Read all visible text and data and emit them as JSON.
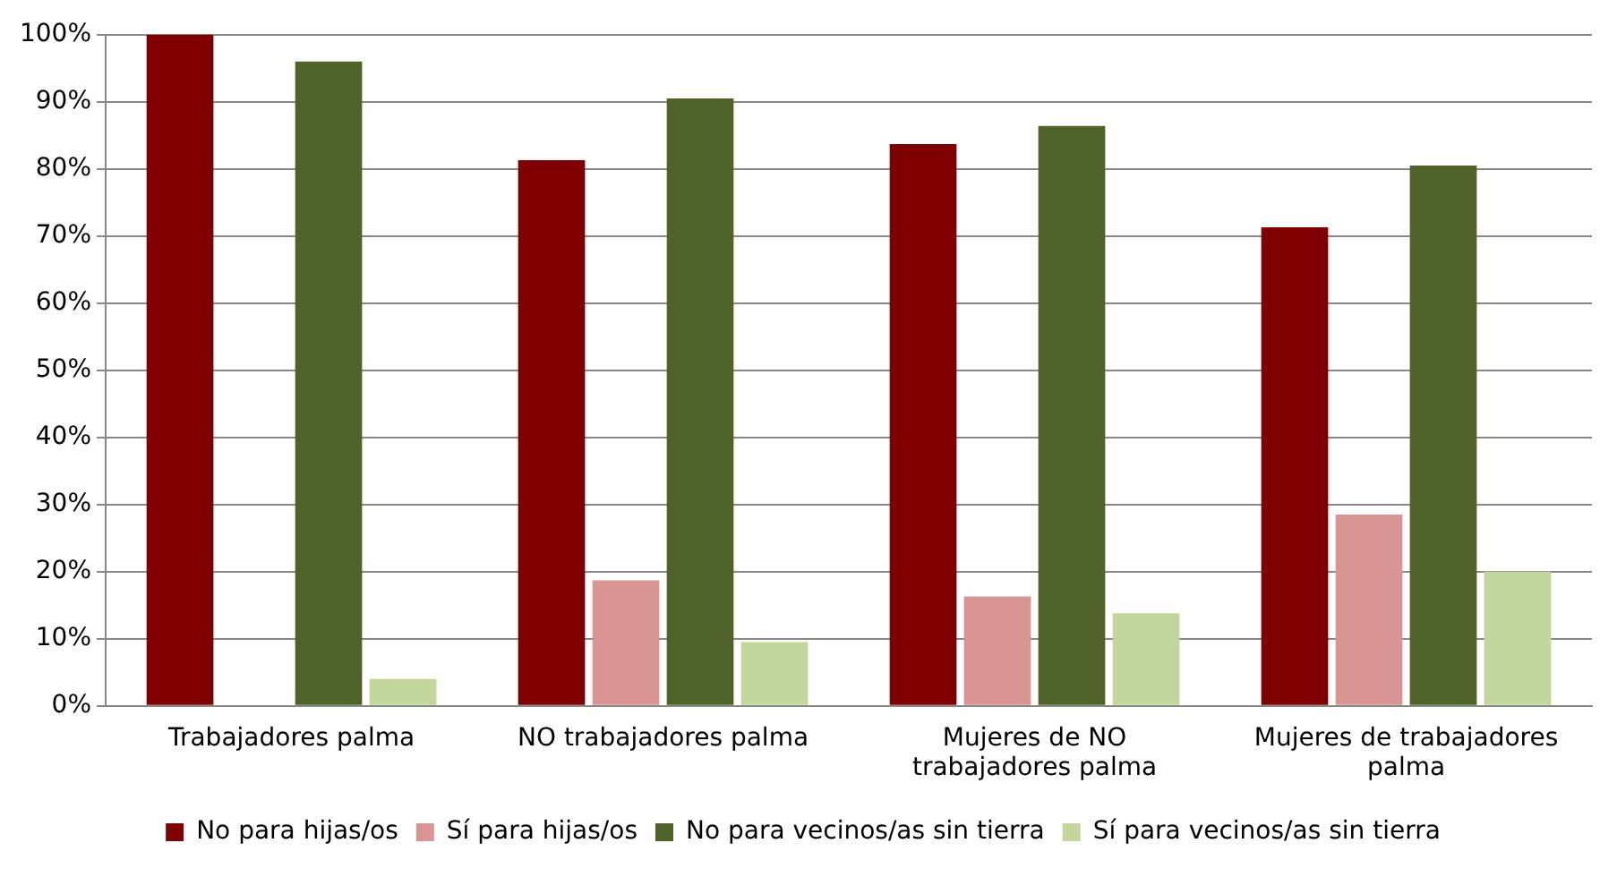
{
  "chart_data": {
    "type": "bar",
    "categories": [
      "Trabajadores palma",
      "NO trabajadores palma",
      "Mujeres de NO trabajadores palma",
      "Mujeres de trabajadores palma"
    ],
    "series": [
      {
        "name": "No para hijas/os",
        "color": "#7f0000",
        "values": [
          100,
          81.3,
          83.7,
          71.3
        ]
      },
      {
        "name": "Sí para hijas/os",
        "color": "#d99594",
        "values": [
          0,
          18.7,
          16.3,
          28.5
        ]
      },
      {
        "name": "No para vecinos/as sin tierra",
        "color": "#4f6228",
        "values": [
          96,
          90.5,
          86.4,
          80.5
        ]
      },
      {
        "name": "Sí para vecinos/as sin tierra",
        "color": "#c3d69b",
        "values": [
          4,
          9.5,
          13.8,
          20
        ]
      }
    ],
    "ylim": [
      0,
      100
    ],
    "yticks": [
      {
        "value": 0,
        "label": "0%"
      },
      {
        "value": 10,
        "label": "10%"
      },
      {
        "value": 20,
        "label": "20%"
      },
      {
        "value": 30,
        "label": "30%"
      },
      {
        "value": 40,
        "label": "40%"
      },
      {
        "value": 50,
        "label": "50%"
      },
      {
        "value": 60,
        "label": "60%"
      },
      {
        "value": 70,
        "label": "70%"
      },
      {
        "value": 80,
        "label": "80%"
      },
      {
        "value": 90,
        "label": "90%"
      },
      {
        "value": 100,
        "label": "100%"
      }
    ],
    "grid": "y",
    "legend": "bottom"
  }
}
